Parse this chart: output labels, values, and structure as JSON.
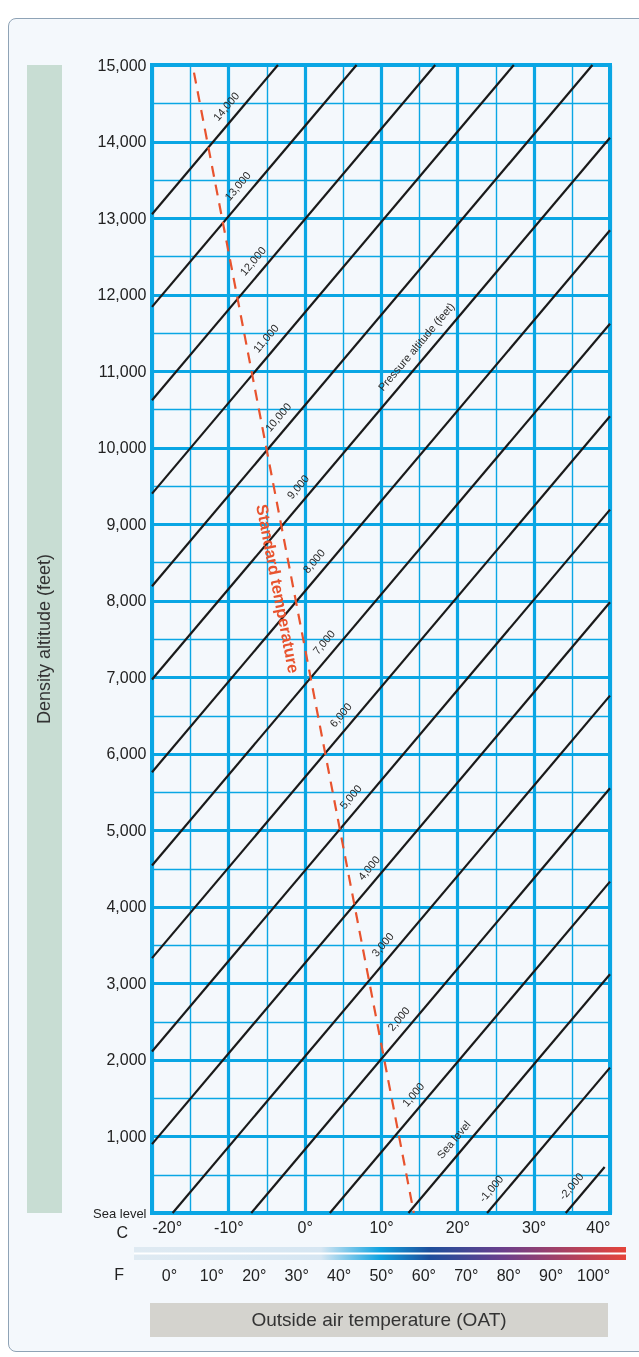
{
  "chart_data": {
    "type": "line",
    "xlabel": "Outside air temperature (OAT)",
    "ylabel": "Density altitude (feet)",
    "xlim": [
      -20,
      40
    ],
    "xticks": [
      {
        "value": -20,
        "label": "-20°"
      },
      {
        "value": -15,
        "label": null
      },
      {
        "value": -10,
        "label": "-10°"
      },
      {
        "value": -5,
        "label": null
      },
      {
        "value": 0,
        "label": "0°"
      },
      {
        "value": 5,
        "label": null
      },
      {
        "value": 10,
        "label": "10°"
      },
      {
        "value": 15,
        "label": null
      },
      {
        "value": 20,
        "label": "20°"
      },
      {
        "value": 25,
        "label": null
      },
      {
        "value": 30,
        "label": "30°"
      },
      {
        "value": 35,
        "label": null
      },
      {
        "value": 40,
        "label": "40°"
      }
    ],
    "x2lim": [
      -4,
      104
    ],
    "x2ticks": [
      {
        "value": 0,
        "label": "0°"
      },
      {
        "value": 10,
        "label": "10°"
      },
      {
        "value": 20,
        "label": "20°"
      },
      {
        "value": 30,
        "label": "30°"
      },
      {
        "value": 40,
        "label": "40°"
      },
      {
        "value": 50,
        "label": "50°"
      },
      {
        "value": 60,
        "label": "60°"
      },
      {
        "value": 70,
        "label": "70°"
      },
      {
        "value": 80,
        "label": "80°"
      },
      {
        "value": 90,
        "label": "90°"
      },
      {
        "value": 100,
        "label": "100°"
      }
    ],
    "ylim": [
      0,
      15000
    ],
    "yticks": [
      {
        "value": 0,
        "label": "Sea level"
      },
      {
        "value": 500,
        "label": null
      },
      {
        "value": 1000,
        "label": "1,000"
      },
      {
        "value": 1500,
        "label": null
      },
      {
        "value": 2000,
        "label": "2,000"
      },
      {
        "value": 2500,
        "label": null
      },
      {
        "value": 3000,
        "label": "3,000"
      },
      {
        "value": 3500,
        "label": null
      },
      {
        "value": 4000,
        "label": "4,000"
      },
      {
        "value": 4500,
        "label": null
      },
      {
        "value": 5000,
        "label": "5,000"
      },
      {
        "value": 5500,
        "label": null
      },
      {
        "value": 6000,
        "label": "6,000"
      },
      {
        "value": 6500,
        "label": null
      },
      {
        "value": 7000,
        "label": "7,000"
      },
      {
        "value": 7500,
        "label": null
      },
      {
        "value": 8000,
        "label": "8,000"
      },
      {
        "value": 8500,
        "label": null
      },
      {
        "value": 9000,
        "label": "9,000"
      },
      {
        "value": 9500,
        "label": null
      },
      {
        "value": 10000,
        "label": "10,000"
      },
      {
        "value": 10500,
        "label": null
      },
      {
        "value": 11000,
        "label": "11,000"
      },
      {
        "value": 11500,
        "label": null
      },
      {
        "value": 12000,
        "label": "12,000"
      },
      {
        "value": 12500,
        "label": null
      },
      {
        "value": 13000,
        "label": "13,000"
      },
      {
        "value": 13500,
        "label": null
      },
      {
        "value": 14000,
        "label": "14,000"
      },
      {
        "value": 14500,
        "label": null
      },
      {
        "value": 15000,
        "label": "15,000"
      }
    ],
    "grid": true,
    "series": [
      {
        "color": "#1a1a1a",
        "x": [
          -20,
          -3.5
        ],
        "values": [
          13050,
          15000
        ]
      },
      {
        "color": "#1a1a1a",
        "x": [
          -20,
          6.8
        ],
        "values": [
          11840,
          15000
        ]
      },
      {
        "color": "#1a1a1a",
        "x": [
          -20,
          17.1
        ],
        "values": [
          10620,
          15000
        ]
      },
      {
        "color": "#1a1a1a",
        "x": [
          -20,
          27.4
        ],
        "values": [
          9400,
          15000
        ]
      },
      {
        "color": "#1a1a1a",
        "x": [
          -20,
          37.7
        ],
        "values": [
          8190,
          15000
        ]
      },
      {
        "color": "#1a1a1a",
        "x": [
          -20,
          40
        ],
        "values": [
          6970,
          14050
        ]
      },
      {
        "color": "#1a1a1a",
        "x": [
          -20,
          40
        ],
        "values": [
          5760,
          12840
        ]
      },
      {
        "color": "#1a1a1a",
        "x": [
          -20,
          40
        ],
        "values": [
          4540,
          11620
        ]
      },
      {
        "color": "#1a1a1a",
        "x": [
          -20,
          40
        ],
        "values": [
          3330,
          10410
        ]
      },
      {
        "color": "#1a1a1a",
        "x": [
          -20,
          40
        ],
        "values": [
          2110,
          9190
        ]
      },
      {
        "color": "#1a1a1a",
        "x": [
          -20,
          40
        ],
        "values": [
          900,
          7980
        ]
      },
      {
        "color": "#1a1a1a",
        "x": [
          -17.3,
          40
        ],
        "values": [
          0,
          6760
        ]
      },
      {
        "color": "#1a1a1a",
        "x": [
          -7.0,
          40
        ],
        "values": [
          0,
          5550
        ]
      },
      {
        "color": "#1a1a1a",
        "x": [
          3.3,
          40
        ],
        "values": [
          0,
          4330
        ]
      },
      {
        "color": "#1a1a1a",
        "x": [
          13.6,
          40
        ],
        "values": [
          0,
          3120
        ]
      },
      {
        "color": "#1a1a1a",
        "x": [
          23.9,
          40
        ],
        "values": [
          0,
          1900
        ]
      },
      {
        "color": "#1a1a1a",
        "x": [
          34.2,
          39.3
        ],
        "values": [
          0,
          600
        ]
      },
      {
        "name": "Standard temperature",
        "color": "#e8532e",
        "line_style": "dashed",
        "x": [
          -14.5,
          14.3
        ],
        "values": [
          14900,
          0
        ]
      }
    ],
    "annotations": [
      {
        "text": "14,000",
        "x": -9.0,
        "y": 14350
      },
      {
        "text": "13,000",
        "x": -7.5,
        "y": 13310
      },
      {
        "text": "12,000",
        "x": -5.5,
        "y": 12330
      },
      {
        "text": "11,000",
        "x": -3.8,
        "y": 11320
      },
      {
        "text": "10,000",
        "x": -2.2,
        "y": 10290
      },
      {
        "text": "9,000",
        "x": 0.4,
        "y": 9380
      },
      {
        "text": "8,000",
        "x": 2.5,
        "y": 8410
      },
      {
        "text": "7,000",
        "x": 3.8,
        "y": 7350
      },
      {
        "text": "6,000",
        "x": 6.0,
        "y": 6400
      },
      {
        "text": "5,000",
        "x": 7.3,
        "y": 5330
      },
      {
        "text": "4,000",
        "x": 9.7,
        "y": 4400
      },
      {
        "text": "3,000",
        "x": 11.5,
        "y": 3400
      },
      {
        "text": "2,000",
        "x": 13.6,
        "y": 2430
      },
      {
        "text": "1,000",
        "x": 15.5,
        "y": 1440
      },
      {
        "text": "Sea level",
        "x": 20.8,
        "y": 850
      },
      {
        "text": "-1,000",
        "x": 25.7,
        "y": 210
      },
      {
        "text": "-2,000",
        "x": 36.2,
        "y": 240
      },
      {
        "text": "Pressure altitude (feet)",
        "x": 15.9,
        "y": 11210
      },
      "C",
      "F"
    ]
  }
}
